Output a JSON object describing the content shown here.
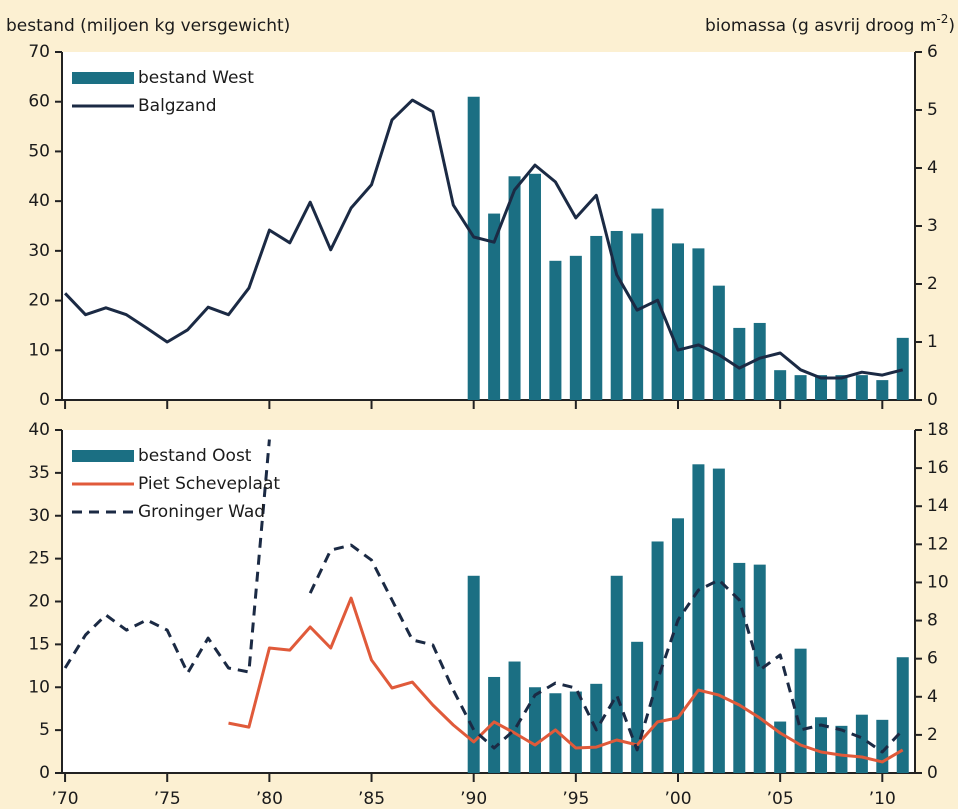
{
  "chart_data": [
    {
      "type": "combo",
      "ylabel": "bestand (miljoen kg versgewicht)",
      "y2label": "biomassa (g asvrij droog m",
      "y2label_sup": "-2",
      "y2label_end": ")",
      "legend": "upper left",
      "x": [
        1970,
        1971,
        1972,
        1973,
        1974,
        1975,
        1976,
        1977,
        1978,
        1979,
        1980,
        1981,
        1982,
        1983,
        1984,
        1985,
        1986,
        1987,
        1988,
        1989,
        1990,
        1991,
        1992,
        1993,
        1994,
        1995,
        1996,
        1997,
        1998,
        1999,
        2000,
        2001,
        2002,
        2003,
        2004,
        2005,
        2006,
        2007,
        2008,
        2009,
        2010,
        2011
      ],
      "xlim": [
        1969.85,
        2011.6
      ],
      "xticks": [
        1970,
        1975,
        1980,
        1985,
        1990,
        1995,
        2000,
        2005,
        2010
      ],
      "ylim": [
        0,
        70
      ],
      "yticks": [
        0,
        10,
        20,
        30,
        40,
        50,
        60,
        70
      ],
      "y2lim": [
        0,
        6
      ],
      "y2ticks": [
        0,
        1,
        2,
        3,
        4,
        5,
        6
      ],
      "series": [
        {
          "name": "bestand West",
          "color": "#1b6f83",
          "style": "bar",
          "axis": "y",
          "values": [
            null,
            null,
            null,
            null,
            null,
            null,
            null,
            null,
            null,
            null,
            null,
            null,
            null,
            null,
            null,
            null,
            null,
            null,
            null,
            null,
            61,
            37.5,
            45,
            45.5,
            28,
            29,
            33,
            34,
            33.5,
            38.5,
            31.5,
            30.5,
            23,
            14.5,
            15.5,
            6,
            5,
            5,
            5,
            5,
            4,
            12.5
          ]
        },
        {
          "name": "Balgzand",
          "color": "#1b2a44",
          "style": "solid",
          "axis": "y2",
          "values": [
            1.84,
            1.47,
            1.59,
            1.47,
            1.24,
            1.0,
            1.21,
            1.6,
            1.47,
            1.93,
            2.93,
            2.71,
            3.41,
            2.59,
            3.31,
            3.71,
            4.83,
            5.17,
            4.97,
            3.36,
            2.81,
            2.72,
            3.62,
            4.05,
            3.76,
            3.14,
            3.53,
            2.16,
            1.55,
            1.72,
            0.86,
            0.95,
            0.78,
            0.55,
            0.72,
            0.81,
            0.52,
            0.38,
            0.38,
            0.48,
            0.43,
            0.52
          ]
        }
      ]
    },
    {
      "type": "combo",
      "legend": "upper left",
      "x": [
        1970,
        1971,
        1972,
        1973,
        1974,
        1975,
        1976,
        1977,
        1978,
        1979,
        1980,
        1981,
        1982,
        1983,
        1984,
        1985,
        1986,
        1987,
        1988,
        1989,
        1990,
        1991,
        1992,
        1993,
        1994,
        1995,
        1996,
        1997,
        1998,
        1999,
        2000,
        2001,
        2002,
        2003,
        2004,
        2005,
        2006,
        2007,
        2008,
        2009,
        2010,
        2011
      ],
      "xlim": [
        1969.85,
        2011.6
      ],
      "xticks": [
        {
          "value": 1970,
          "label": "’70"
        },
        {
          "value": 1975,
          "label": "’75"
        },
        {
          "value": 1980,
          "label": "’80"
        },
        {
          "value": 1985,
          "label": "’85"
        },
        {
          "value": 1990,
          "label": "’90"
        },
        {
          "value": 1995,
          "label": "’95"
        },
        {
          "value": 2000,
          "label": "’00"
        },
        {
          "value": 2005,
          "label": "’05"
        },
        {
          "value": 2010,
          "label": "’10"
        }
      ],
      "ylim": [
        0,
        40
      ],
      "yticks": [
        0,
        5,
        10,
        15,
        20,
        25,
        30,
        35,
        40
      ],
      "y2lim": [
        0,
        18
      ],
      "y2ticks": [
        0,
        2,
        4,
        6,
        8,
        10,
        12,
        14,
        16,
        18
      ],
      "series": [
        {
          "name": "bestand Oost",
          "color": "#1b6f83",
          "style": "bar",
          "axis": "y",
          "values": [
            null,
            null,
            null,
            null,
            null,
            null,
            null,
            null,
            null,
            null,
            null,
            null,
            null,
            null,
            null,
            null,
            null,
            null,
            null,
            null,
            23,
            11.2,
            13,
            10,
            9.3,
            9.5,
            10.4,
            23,
            15.3,
            27,
            29.7,
            36,
            35.5,
            24.5,
            24.3,
            6,
            14.5,
            6.5,
            5.5,
            6.8,
            6.2,
            13.5
          ]
        },
        {
          "name": "Piet Scheveplaat",
          "color": "#e05a3a",
          "style": "solid",
          "axis": "y2",
          "values": [
            null,
            null,
            null,
            null,
            null,
            null,
            null,
            null,
            2.62,
            2.41,
            6.56,
            6.45,
            7.66,
            6.56,
            9.18,
            5.93,
            4.46,
            4.77,
            3.57,
            2.52,
            1.63,
            2.68,
            2.1,
            1.47,
            2.26,
            1.31,
            1.36,
            1.73,
            1.47,
            2.68,
            2.89,
            4.35,
            4.09,
            3.57,
            2.89,
            2.1,
            1.47,
            1.1,
            0.94,
            0.84,
            0.58,
            1.21
          ]
        },
        {
          "name": "Groninger Wad",
          "color": "#1b2a44",
          "style": "dashed",
          "axis": "y2",
          "values": [
            5.51,
            7.24,
            8.29,
            7.5,
            8.03,
            7.5,
            5.25,
            7.08,
            5.51,
            5.3,
            17.5,
            null,
            9.44,
            11.7,
            11.96,
            11.17,
            9.08,
            6.98,
            6.72,
            4.35,
            2.26,
            1.31,
            2.26,
            4.09,
            4.72,
            4.46,
            2.26,
            4.09,
            1.21,
            4.88,
            8.03,
            9.6,
            10.13,
            9.08,
            5.4,
            6.19,
            2.26,
            2.52,
            2.26,
            1.84,
            1.1,
            2.26
          ]
        }
      ]
    }
  ]
}
